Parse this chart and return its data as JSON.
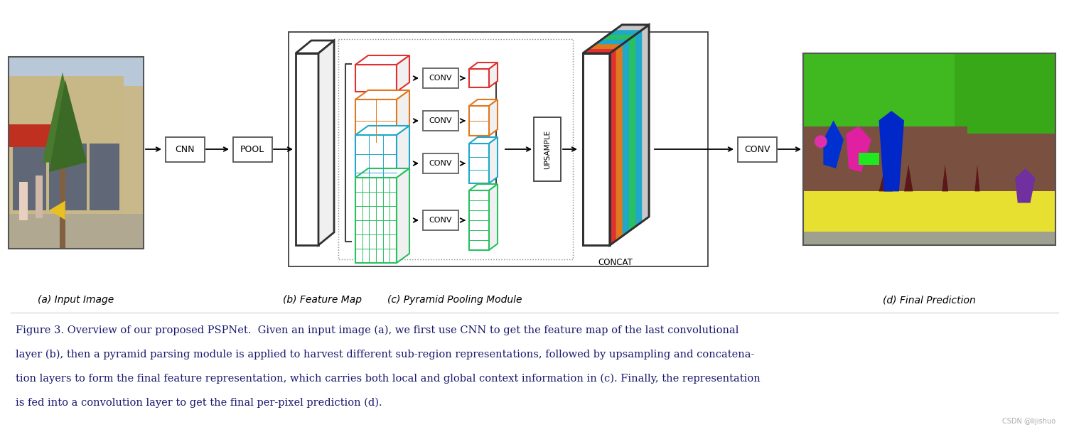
{
  "fig_width": 15.04,
  "fig_height": 6.08,
  "bg_color": "#ffffff",
  "caption_lines": [
    "Figure 3. Overview of our proposed PSPNet.  Given an input image (a), we first use CNN to get the feature map of the last convolutional",
    "layer (b), then a pyramid parsing module is applied to harvest different sub-region representations, followed by upsampling and concatena-",
    "tion layers to form the final feature representation, which carries both local and global context information in (c). Finally, the representation",
    "is fed into a convolution layer to get the final per-pixel prediction (d)."
  ],
  "labels": {
    "a": "(a) Input Image",
    "b": "(b) Feature Map",
    "c": "(c) Pyramid Pooling Module",
    "d": "(d) Final Prediction"
  },
  "colors": {
    "red": "#e03030",
    "orange": "#e07820",
    "cyan": "#20a8c8",
    "green": "#28c060",
    "black": "#000000",
    "watermark": "#aaaaaa",
    "text": "#1a1a6e"
  },
  "watermark_text": "CSDN @lijishuo",
  "caption_fontsize": 10.5
}
